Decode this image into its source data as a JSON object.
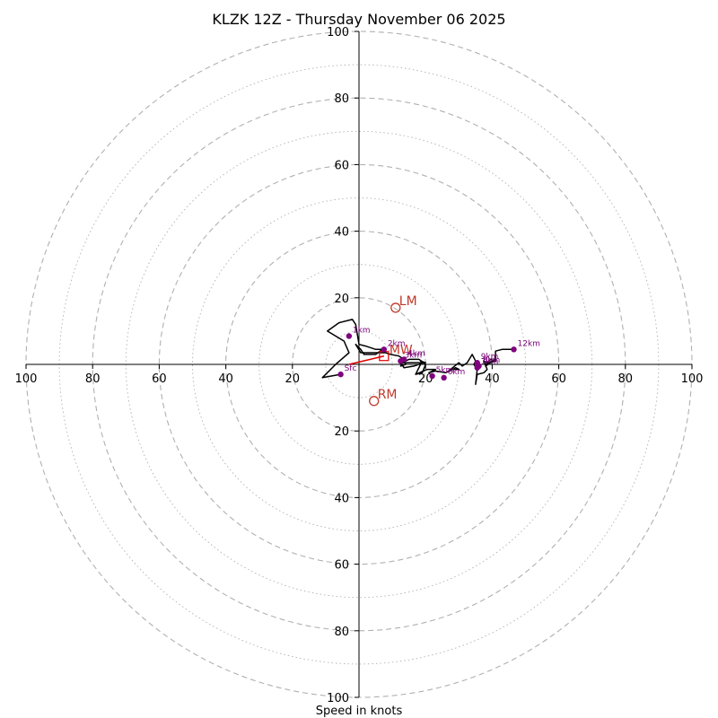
{
  "chart_data": {
    "type": "hodograph",
    "title": "KLZK 12Z - Thursday November 06 2025",
    "xlabel": "Speed in knots",
    "max_speed": 100,
    "ring_major": [
      20,
      40,
      60,
      80,
      100
    ],
    "ring_minor": [
      10,
      30,
      50,
      70,
      90
    ],
    "x_tick_labels": [
      "100",
      "80",
      "60",
      "40",
      "20",
      "20",
      "40",
      "60",
      "80",
      "100"
    ],
    "y_tick_labels": [
      "100",
      "80",
      "60",
      "40",
      "20",
      "20",
      "40",
      "60",
      "80",
      "100"
    ],
    "x_tick_values": [
      -100,
      -80,
      -60,
      -40,
      -20,
      20,
      40,
      60,
      80,
      100
    ],
    "y_tick_values": [
      100,
      80,
      60,
      40,
      20,
      -20,
      -40,
      -60,
      -80,
      -100
    ],
    "trace": [
      [
        -5.5,
        -3.0
      ],
      [
        -11.0,
        -4.0
      ],
      [
        -7.0,
        0.0
      ],
      [
        -3.0,
        3.5
      ],
      [
        -4.5,
        7.0
      ],
      [
        -9.5,
        10.0
      ],
      [
        -6.0,
        12.5
      ],
      [
        -2.0,
        13.5
      ],
      [
        -1.0,
        12.0
      ],
      [
        0.0,
        6.0
      ],
      [
        2.0,
        5.5
      ],
      [
        5.0,
        4.5
      ],
      [
        7.0,
        4.5
      ],
      [
        5.0,
        3.0
      ],
      [
        3.0,
        3.0
      ],
      [
        1.5,
        3.0
      ],
      [
        0.5,
        4.5
      ],
      [
        -1.0,
        6.0
      ],
      [
        0.5,
        3.5
      ],
      [
        3.0,
        3.5
      ],
      [
        5.5,
        3.5
      ],
      [
        8.0,
        3.5
      ],
      [
        9.5,
        3.0
      ],
      [
        12.0,
        2.5
      ],
      [
        13.5,
        1.5
      ],
      [
        14.0,
        0.0
      ],
      [
        12.5,
        -0.5
      ],
      [
        13.0,
        0.5
      ],
      [
        15.0,
        1.5
      ],
      [
        18.0,
        1.5
      ],
      [
        19.5,
        0.5
      ],
      [
        16.5,
        -0.5
      ],
      [
        13.5,
        -1.0
      ],
      [
        12.5,
        0.5
      ],
      [
        20.0,
        0.5
      ],
      [
        18.5,
        1.0
      ],
      [
        20.0,
        0.0
      ],
      [
        19.0,
        -2.5
      ],
      [
        17.0,
        -3.0
      ],
      [
        18.5,
        0.0
      ],
      [
        17.0,
        -3.0
      ],
      [
        20.5,
        -1.5
      ],
      [
        23.0,
        -1.5
      ],
      [
        21.0,
        -2.5
      ],
      [
        23.0,
        -2.0
      ],
      [
        26.0,
        -2.5
      ],
      [
        29.0,
        -1.0
      ],
      [
        30.0,
        -1.5
      ],
      [
        27.5,
        -1.5
      ],
      [
        30.0,
        0.5
      ],
      [
        31.0,
        -0.5
      ],
      [
        32.5,
        0.5
      ],
      [
        34.0,
        3.0
      ],
      [
        35.0,
        1.0
      ],
      [
        34.5,
        0.0
      ],
      [
        35.5,
        -1.5
      ],
      [
        35.0,
        -6.0
      ],
      [
        35.5,
        -3.0
      ],
      [
        37.5,
        -2.5
      ],
      [
        38.5,
        -1.5
      ],
      [
        37.5,
        1.0
      ],
      [
        38.5,
        0.5
      ],
      [
        38.0,
        -0.5
      ],
      [
        39.5,
        0.5
      ],
      [
        41.0,
        1.0
      ],
      [
        39.5,
        1.5
      ],
      [
        38.0,
        0.0
      ],
      [
        41.0,
        1.5
      ],
      [
        41.0,
        3.5
      ],
      [
        41.0,
        4.0
      ],
      [
        43.0,
        4.5
      ],
      [
        46.5,
        4.5
      ]
    ],
    "height_markers": [
      {
        "label": "Sfc",
        "u": -5.5,
        "v": -3.0
      },
      {
        "label": "1km",
        "u": -3.0,
        "v": 8.5
      },
      {
        "label": "2km",
        "u": 7.5,
        "v": 4.5
      },
      {
        "label": "3km",
        "u": 12.5,
        "v": 1.0
      },
      {
        "label": "4km",
        "u": 13.5,
        "v": 1.5
      },
      {
        "label": "5km",
        "u": 22.0,
        "v": -3.5
      },
      {
        "label": "6km",
        "u": 25.5,
        "v": -4.0
      },
      {
        "label": "7km",
        "u": 35.5,
        "v": -1.0
      },
      {
        "label": "8km",
        "u": 36.0,
        "v": -0.5
      },
      {
        "label": "9km",
        "u": 35.5,
        "v": 0.5
      },
      {
        "label": "12km",
        "u": 46.5,
        "v": 4.5
      }
    ],
    "storm_motion": [
      {
        "label": "LM",
        "u": 11.0,
        "v": 17.0
      },
      {
        "label": "RM",
        "u": 4.5,
        "v": -11.0
      }
    ],
    "mean_wind": {
      "label": "MW",
      "u": 7.5,
      "v": 2.5
    },
    "shear_vector": {
      "u1": -3.0,
      "v1": 0.0,
      "u2": 7.5,
      "v2": 2.5
    },
    "colors": {
      "trace": "#000000",
      "height_marker": "#800080",
      "storm_marker": "#c0392b",
      "shear_vector": "#dd0000",
      "rings": "#b0b0b0"
    }
  }
}
